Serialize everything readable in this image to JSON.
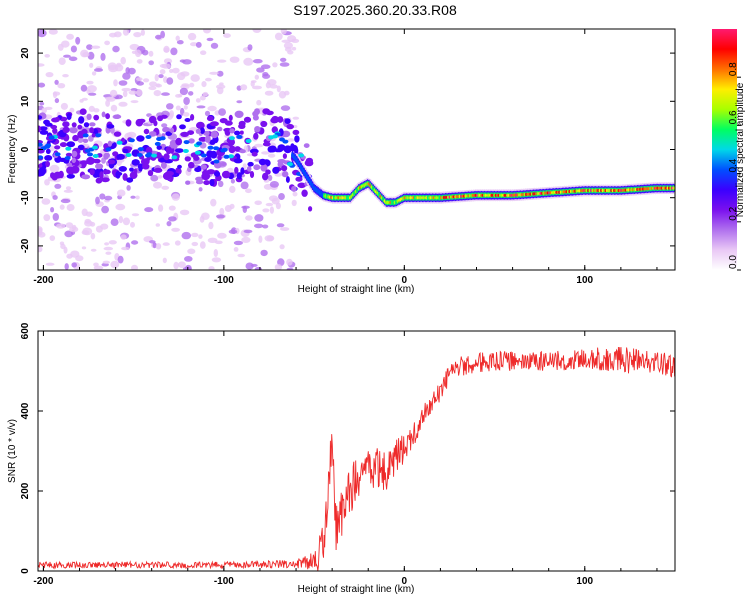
{
  "figure_title": "S197.2025.360.20.33.R08",
  "chart_data": [
    {
      "type": "heatmap",
      "title": "S197.2025.360.20.33.R08",
      "xlabel": "Height of straight line (km)",
      "ylabel": "Frequency (Hz)",
      "xlim": [
        -203,
        150
      ],
      "ylim": [
        -25,
        25
      ],
      "xticks": [
        -200,
        -100,
        0,
        100
      ],
      "xtick_labels": [
        "-200",
        "-100",
        "0",
        "100"
      ],
      "yticks": [
        -20,
        -10,
        0,
        10,
        20
      ],
      "ytick_labels": [
        "-20",
        "-10",
        "0",
        "10",
        "20"
      ],
      "colorbar": {
        "label": "Normalized spectral amplitude",
        "range": [
          0,
          1
        ],
        "ticks": [
          0,
          0.2,
          0.4,
          0.6,
          0.8
        ],
        "tick_labels": [
          "0.0",
          "0.2",
          "0.4",
          "0.6",
          "0.8"
        ],
        "colors": [
          "#ffffff",
          "#e9c8f5",
          "#b070ee",
          "#7a10ee",
          "#3a00ff",
          "#0050ff",
          "#00d8e8",
          "#00ff60",
          "#a8ff00",
          "#ffee00",
          "#ff7000",
          "#ff0000",
          "#ff1a70"
        ]
      },
      "carrier_track": {
        "description": "Frequency of the spectral peak vs height",
        "x": [
          -200,
          -180,
          -160,
          -140,
          -120,
          -100,
          -80,
          -70,
          -60,
          -55,
          -50,
          -45,
          -40,
          -30,
          -25,
          -20,
          -15,
          -10,
          -5,
          0,
          10,
          20,
          40,
          60,
          80,
          100,
          120,
          140,
          150
        ],
        "y": [
          0,
          1,
          0,
          1,
          0,
          0,
          1,
          2,
          -2,
          -5,
          -8,
          -9.5,
          -10,
          -10,
          -8,
          -7,
          -9,
          -11,
          -11,
          -10,
          -10,
          -10,
          -9.5,
          -9.5,
          -9,
          -8.5,
          -8.5,
          -8,
          -8
        ]
      },
      "noise_region_x": [
        -203,
        -60
      ]
    },
    {
      "type": "line",
      "title": "",
      "xlabel": "Height of straight line (km)",
      "ylabel": "SNR (10 * v/v)",
      "xlim": [
        -203,
        150
      ],
      "ylim": [
        0,
        600
      ],
      "xticks": [
        -200,
        -100,
        0,
        100
      ],
      "xtick_labels": [
        "-200",
        "-100",
        "0",
        "100"
      ],
      "yticks": [
        0,
        200,
        400,
        600
      ],
      "ytick_labels": [
        "0",
        "200",
        "400",
        "600"
      ],
      "color": "#ee2a2a",
      "series": [
        {
          "name": "SNR",
          "x": [
            -203,
            -150,
            -100,
            -60,
            -50,
            -45,
            -42,
            -40,
            -38,
            -36,
            -33,
            -30,
            -25,
            -20,
            -15,
            -10,
            -5,
            0,
            5,
            10,
            15,
            20,
            25,
            30,
            40,
            50,
            70,
            90,
            110,
            130,
            150
          ],
          "y": [
            15,
            15,
            15,
            18,
            25,
            60,
            200,
            330,
            100,
            130,
            150,
            200,
            240,
            250,
            260,
            250,
            280,
            310,
            340,
            380,
            420,
            450,
            490,
            510,
            520,
            525,
            525,
            525,
            530,
            525,
            515
          ],
          "noise_amplitude": [
            8,
            8,
            8,
            10,
            25,
            60,
            80,
            40,
            60,
            60,
            60,
            60,
            60,
            55,
            55,
            50,
            45,
            40,
            35,
            30,
            25,
            25,
            25,
            25,
            25,
            25,
            25,
            25,
            30,
            35,
            30
          ]
        }
      ]
    }
  ]
}
